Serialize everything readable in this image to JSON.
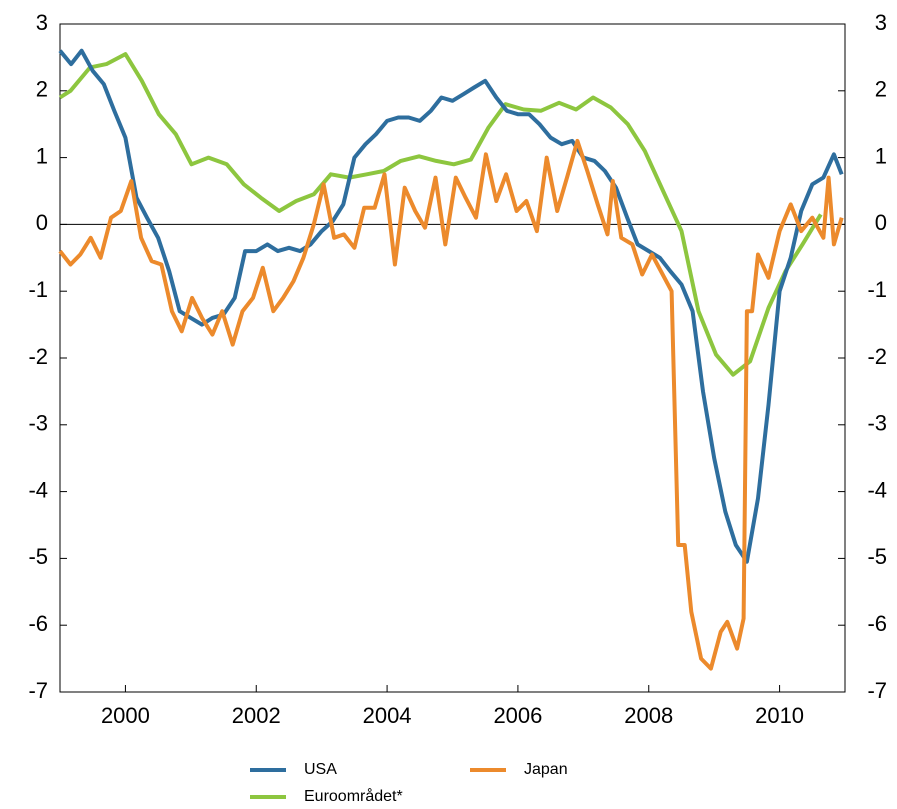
{
  "chart_data": {
    "type": "line",
    "xlim": [
      1999,
      2011
    ],
    "xticks": [
      2000,
      2002,
      2004,
      2006,
      2008,
      2010
    ],
    "ylim": [
      -7,
      3
    ],
    "yticks": [
      -7,
      -6,
      -5,
      -4,
      -3,
      -2,
      -1,
      0,
      1,
      2,
      3
    ],
    "y2lim": [
      -7,
      3
    ],
    "y2ticks": [
      -7,
      -6,
      -5,
      -4,
      -3,
      -2,
      -1,
      0,
      1,
      2,
      3
    ],
    "legend": "bottom",
    "series": [
      {
        "name": "USA",
        "color": "#2e6e9e",
        "x": [
          1999.0,
          1999.17,
          1999.33,
          1999.5,
          1999.67,
          1999.83,
          2000.0,
          2000.17,
          2000.33,
          2000.5,
          2000.67,
          2000.83,
          2001.0,
          2001.17,
          2001.33,
          2001.5,
          2001.67,
          2001.83,
          2002.0,
          2002.17,
          2002.33,
          2002.5,
          2002.67,
          2002.83,
          2003.0,
          2003.17,
          2003.33,
          2003.5,
          2003.67,
          2003.83,
          2004.0,
          2004.17,
          2004.33,
          2004.5,
          2004.67,
          2004.83,
          2005.0,
          2005.17,
          2005.33,
          2005.5,
          2005.67,
          2005.83,
          2006.0,
          2006.17,
          2006.33,
          2006.5,
          2006.67,
          2006.83,
          2007.0,
          2007.17,
          2007.33,
          2007.5,
          2007.67,
          2007.83,
          2008.0,
          2008.17,
          2008.33,
          2008.5,
          2008.67,
          2008.83,
          2009.0,
          2009.17,
          2009.33,
          2009.5,
          2009.67,
          2009.83,
          2010.0,
          2010.17,
          2010.33,
          2010.5,
          2010.67,
          2010.83,
          2010.95
        ],
        "values": [
          2.6,
          2.4,
          2.6,
          2.3,
          2.1,
          1.7,
          1.3,
          0.4,
          0.1,
          -0.2,
          -0.7,
          -1.3,
          -1.4,
          -1.5,
          -1.4,
          -1.35,
          -1.1,
          -0.4,
          -0.4,
          -0.3,
          -0.4,
          -0.35,
          -0.4,
          -0.3,
          -0.1,
          0.05,
          0.3,
          1.0,
          1.2,
          1.35,
          1.55,
          1.6,
          1.6,
          1.55,
          1.7,
          1.9,
          1.85,
          1.95,
          2.05,
          2.15,
          1.9,
          1.7,
          1.65,
          1.65,
          1.5,
          1.3,
          1.2,
          1.25,
          1.0,
          0.95,
          0.8,
          0.55,
          0.1,
          -0.3,
          -0.4,
          -0.5,
          -0.7,
          -0.9,
          -1.3,
          -2.5,
          -3.5,
          -4.3,
          -4.8,
          -5.05,
          -4.1,
          -2.7,
          -1.0,
          -0.5,
          0.2,
          0.6,
          0.7,
          1.05,
          0.75
        ]
      },
      {
        "name": "Japan",
        "color": "#ec8a2c",
        "x": [
          1999.0,
          1999.16,
          1999.31,
          1999.47,
          1999.62,
          1999.78,
          1999.93,
          2000.09,
          2000.24,
          2000.4,
          2000.55,
          2000.71,
          2000.86,
          2001.02,
          2001.17,
          2001.33,
          2001.48,
          2001.64,
          2001.79,
          2001.95,
          2002.1,
          2002.26,
          2002.41,
          2002.57,
          2002.72,
          2002.88,
          2003.03,
          2003.19,
          2003.34,
          2003.5,
          2003.65,
          2003.81,
          2003.96,
          2004.12,
          2004.27,
          2004.43,
          2004.58,
          2004.74,
          2004.89,
          2005.05,
          2005.2,
          2005.36,
          2005.51,
          2005.67,
          2005.82,
          2005.98,
          2006.13,
          2006.29,
          2006.44,
          2006.6,
          2006.75,
          2006.91,
          2007.06,
          2007.22,
          2007.37,
          2007.45,
          2007.58,
          2007.75,
          2007.9,
          2008.05,
          2008.35,
          2008.45,
          2008.55,
          2008.65,
          2008.8,
          2008.95,
          2009.1,
          2009.2,
          2009.35,
          2009.45,
          2009.5,
          2009.58,
          2009.67,
          2009.83,
          2010.0,
          2010.17,
          2010.33,
          2010.5,
          2010.67,
          2010.75,
          2010.83,
          2010.95
        ],
        "values": [
          -0.4,
          -0.6,
          -0.45,
          -0.2,
          -0.5,
          0.1,
          0.2,
          0.65,
          -0.2,
          -0.55,
          -0.6,
          -1.3,
          -1.6,
          -1.1,
          -1.4,
          -1.65,
          -1.3,
          -1.8,
          -1.3,
          -1.1,
          -0.65,
          -1.3,
          -1.1,
          -0.85,
          -0.5,
          0.0,
          0.6,
          -0.2,
          -0.15,
          -0.35,
          0.25,
          0.25,
          0.75,
          -0.6,
          0.55,
          0.2,
          -0.05,
          0.7,
          -0.3,
          0.7,
          0.4,
          0.1,
          1.05,
          0.35,
          0.75,
          0.2,
          0.35,
          -0.1,
          1.0,
          0.2,
          0.7,
          1.25,
          0.8,
          0.3,
          -0.15,
          0.65,
          -0.2,
          -0.3,
          -0.75,
          -0.45,
          -1.0,
          -4.8,
          -4.8,
          -5.8,
          -6.5,
          -6.65,
          -6.1,
          -5.95,
          -6.35,
          -5.9,
          -1.3,
          -1.3,
          -0.45,
          -0.8,
          -0.1,
          0.3,
          -0.1,
          0.1,
          -0.2,
          0.7,
          -0.3,
          0.1
        ]
      },
      {
        "name": "Euroområdet*",
        "color": "#8dc63f",
        "x": [
          1999.0,
          1999.16,
          1999.46,
          1999.71,
          2000.0,
          2000.25,
          2000.51,
          2000.77,
          2001.01,
          2001.27,
          2001.55,
          2001.81,
          2002.07,
          2002.35,
          2002.61,
          2002.88,
          2003.14,
          2003.42,
          2003.69,
          2003.95,
          2004.21,
          2004.49,
          2004.75,
          2005.02,
          2005.28,
          2005.55,
          2005.81,
          2006.09,
          2006.35,
          2006.63,
          2006.89,
          2007.15,
          2007.42,
          2007.68,
          2007.94,
          2008.22,
          2008.5,
          2008.76,
          2009.03,
          2009.29,
          2009.55,
          2009.83,
          2010.09,
          2010.35,
          2010.63
        ],
        "values": [
          1.9,
          2.0,
          2.35,
          2.4,
          2.55,
          2.15,
          1.65,
          1.35,
          0.9,
          1.0,
          0.9,
          0.6,
          0.4,
          0.2,
          0.35,
          0.45,
          0.75,
          0.7,
          0.75,
          0.8,
          0.95,
          1.02,
          0.95,
          0.9,
          0.97,
          1.45,
          1.8,
          1.72,
          1.7,
          1.82,
          1.72,
          1.9,
          1.75,
          1.5,
          1.1,
          0.5,
          -0.1,
          -1.3,
          -1.95,
          -2.25,
          -2.05,
          -1.25,
          -0.7,
          -0.3,
          0.15
        ]
      }
    ]
  }
}
